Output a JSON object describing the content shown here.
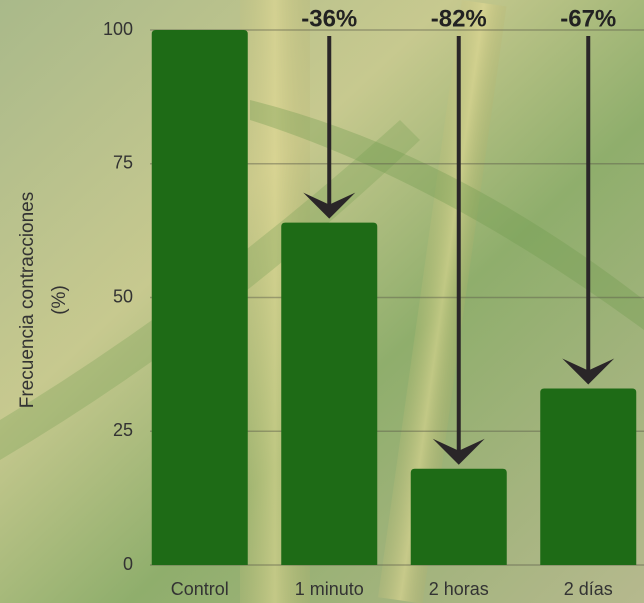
{
  "chart_data": {
    "type": "bar",
    "categories": [
      "Control",
      "1 minuto",
      "2 horas",
      "2 días"
    ],
    "values": [
      100,
      64,
      18,
      33
    ],
    "color": "#1e6b16",
    "ylim": [
      0,
      100
    ],
    "yticks": [
      0,
      25,
      50,
      75,
      100
    ],
    "grid": true,
    "ylabel": [
      "Frecuencia contracciones",
      "(%)"
    ],
    "annotations": [
      "-36%",
      "-82%",
      "-67%"
    ]
  }
}
